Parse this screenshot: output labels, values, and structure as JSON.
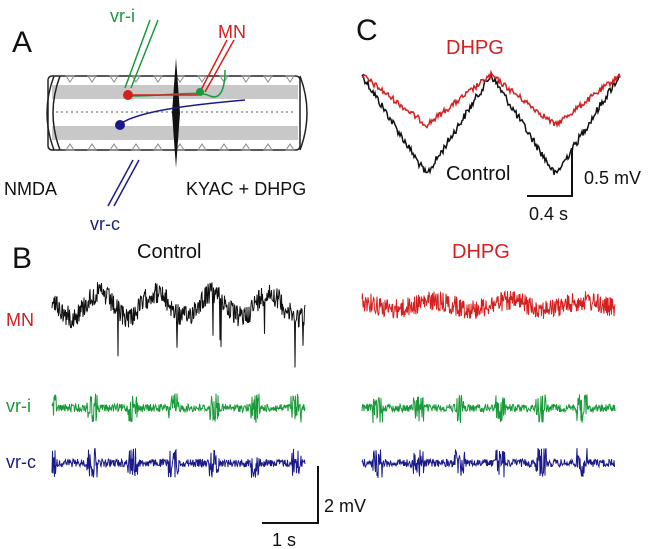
{
  "panels": {
    "a": {
      "label": "A",
      "vr_i": "vr-i",
      "mn": "MN",
      "vr_c": "vr-c",
      "left_bath": "NMDA",
      "right_bath": "KYAC + DHPG"
    },
    "c": {
      "label": "C",
      "dhpg": "DHPG",
      "control": "Control",
      "scale_v": "0.5 mV",
      "scale_t": "0.4 s"
    },
    "b": {
      "label": "B",
      "control": "Control",
      "dhpg": "DHPG",
      "rows": [
        "MN",
        "vr-i",
        "vr-c"
      ],
      "scale_v": "2 mV",
      "scale_t": "1 s"
    }
  }
}
